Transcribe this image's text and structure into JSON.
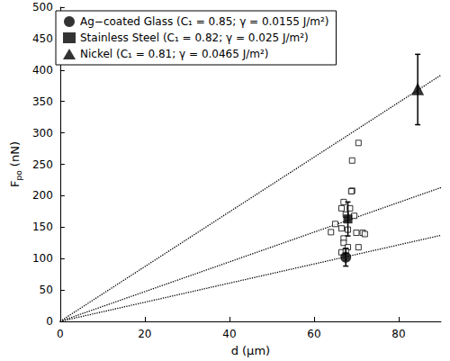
{
  "chart_data": {
    "type": "scatter",
    "xlabel": "d (μm)",
    "ylabel_parts": [
      {
        "text": "F"
      },
      {
        "text": "po",
        "sub": true
      },
      {
        "text": " (nN)"
      }
    ],
    "xlim": [
      0,
      90
    ],
    "xticks": [
      0,
      20,
      40,
      60,
      80
    ],
    "ylim": [
      0,
      500
    ],
    "yticks": [
      0,
      50,
      100,
      150,
      200,
      250,
      300,
      350,
      400,
      450,
      500
    ],
    "grid": false,
    "legend": "upper left",
    "series": [
      {
        "type": "line",
        "line_style": "dotted",
        "color": "#000000",
        "x": [
          0,
          90
        ],
        "values": [
          0,
          392
        ]
      },
      {
        "type": "line",
        "line_style": "dotted",
        "color": "#000000",
        "x": [
          0,
          90
        ],
        "values": [
          0,
          213
        ]
      },
      {
        "type": "line",
        "line_style": "dotted",
        "color": "#000000",
        "x": [
          0,
          90
        ],
        "values": [
          0,
          137
        ]
      },
      {
        "type": "scatter",
        "marker": "open_square",
        "color": "#000000",
        "x": [
          70.5,
          69,
          69,
          68.8,
          67,
          66.5,
          68.5,
          69.5,
          67.5,
          65,
          64,
          66.5,
          68,
          67,
          70,
          71.5,
          72,
          67,
          68,
          70.5,
          66.5,
          67.5
        ],
        "values": [
          284,
          256,
          208,
          207,
          190,
          180,
          180,
          168,
          170,
          155,
          142,
          148,
          146,
          132,
          141,
          141,
          139,
          125,
          118,
          118,
          110,
          112
        ]
      },
      {
        "name": "Ag−coated Glass (C₁ = 0.85; γ = 0.0155 J/m²)",
        "type": "scatter",
        "marker": "circle",
        "color": "#000000",
        "x": [
          67.5
        ],
        "values": [
          102
        ],
        "error_range": [
          [
            88,
            116
          ]
        ]
      },
      {
        "name": "Stainless Steel (C₁ = 0.82; γ = 0.025 J/m²)",
        "type": "scatter",
        "marker": "square",
        "color": "#000000",
        "x": [
          68
        ],
        "values": [
          163
        ],
        "error_range": [
          [
            136,
            190
          ]
        ]
      },
      {
        "name": "Nickel (C₁ = 0.81; γ = 0.0465 J/m²)",
        "type": "scatter",
        "marker": "triangle",
        "color": "#000000",
        "x": [
          84.5
        ],
        "values": [
          370
        ],
        "error_range": [
          [
            313,
            425
          ]
        ]
      }
    ]
  }
}
